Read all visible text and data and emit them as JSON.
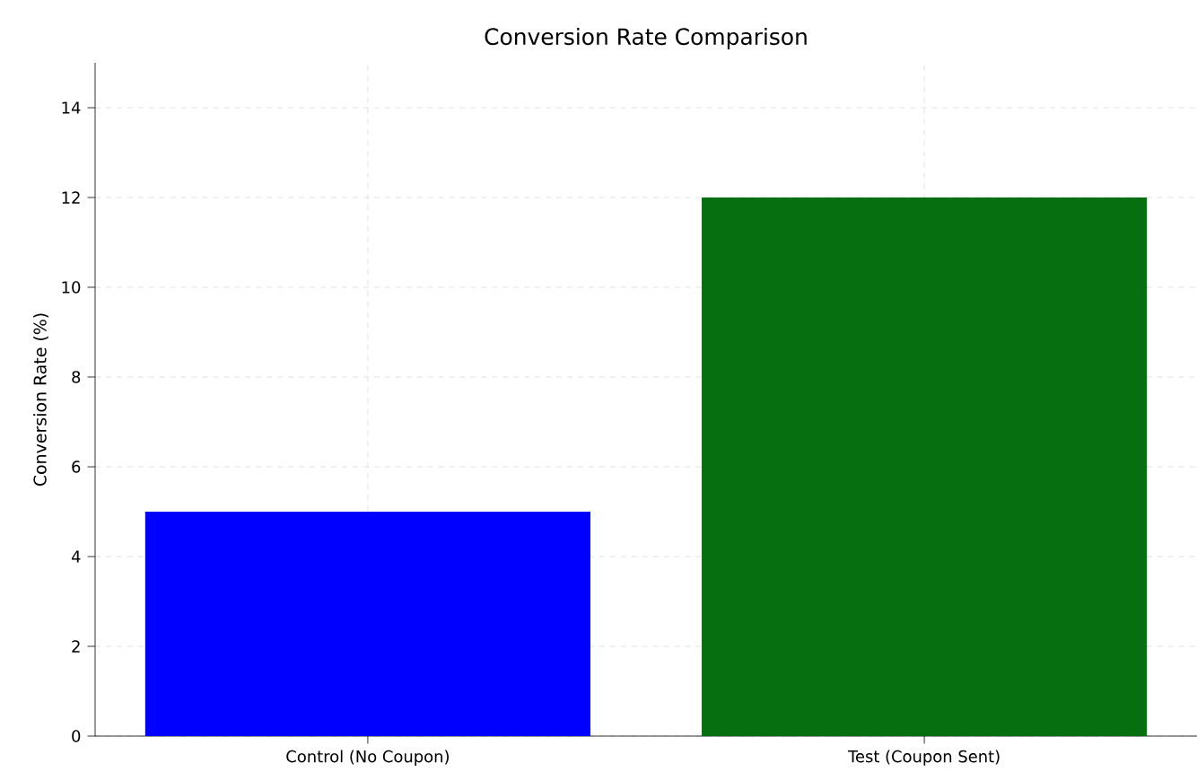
{
  "chart_data": {
    "type": "bar",
    "title": "Conversion Rate Comparison",
    "ylabel": "Conversion Rate (%)",
    "categories": [
      "Control (No Coupon)",
      "Test (Coupon Sent)"
    ],
    "values": [
      5,
      12
    ],
    "colors": [
      "#0000ff",
      "#067010"
    ],
    "ylim": [
      0,
      15
    ],
    "yticks": [
      0,
      2,
      4,
      6,
      8,
      10,
      12,
      14
    ],
    "grid": true
  }
}
